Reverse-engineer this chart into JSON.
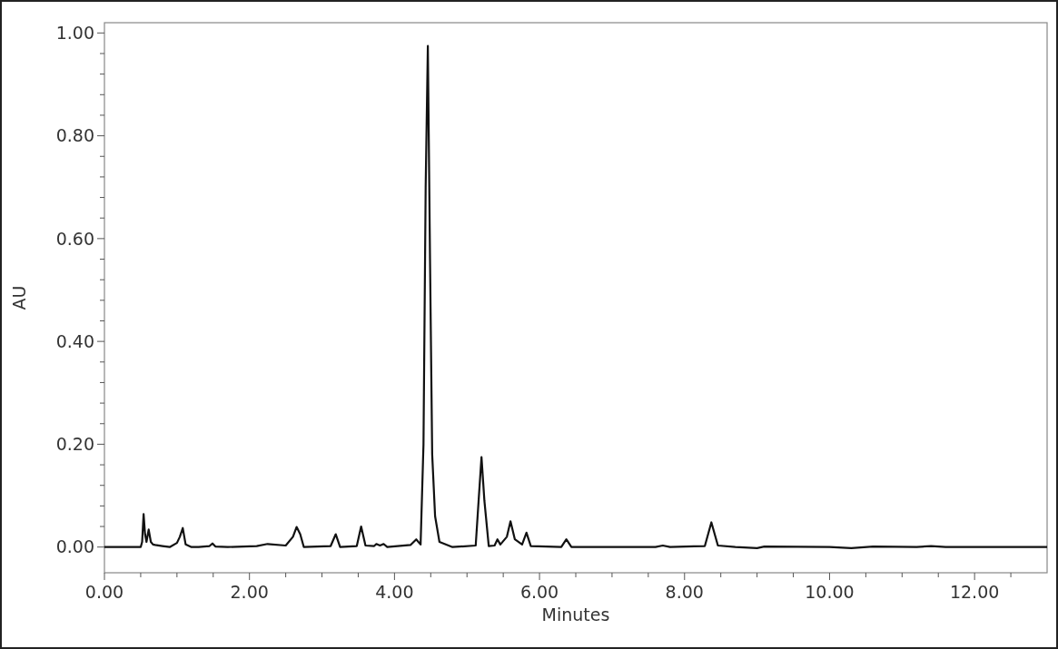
{
  "chart_data": {
    "type": "line",
    "xlabel": "Minutes",
    "ylabel": "AU",
    "xlim": [
      0,
      13
    ],
    "ylim": [
      -0.05,
      1.02
    ],
    "xticks": [
      {
        "value": 0,
        "label": "0.00"
      },
      {
        "value": 0.5,
        "label": null
      },
      {
        "value": 1,
        "label": null
      },
      {
        "value": 1.5,
        "label": null
      },
      {
        "value": 2,
        "label": "2.00"
      },
      {
        "value": 2.5,
        "label": null
      },
      {
        "value": 3,
        "label": null
      },
      {
        "value": 3.5,
        "label": null
      },
      {
        "value": 4,
        "label": "4.00"
      },
      {
        "value": 4.5,
        "label": null
      },
      {
        "value": 5,
        "label": null
      },
      {
        "value": 5.5,
        "label": null
      },
      {
        "value": 6,
        "label": "6.00"
      },
      {
        "value": 6.5,
        "label": null
      },
      {
        "value": 7,
        "label": null
      },
      {
        "value": 7.5,
        "label": null
      },
      {
        "value": 8,
        "label": "8.00"
      },
      {
        "value": 8.5,
        "label": null
      },
      {
        "value": 9,
        "label": null
      },
      {
        "value": 9.5,
        "label": null
      },
      {
        "value": 10,
        "label": "10.00"
      },
      {
        "value": 10.5,
        "label": null
      },
      {
        "value": 11,
        "label": null
      },
      {
        "value": 11.5,
        "label": null
      },
      {
        "value": 12,
        "label": "12.00"
      },
      {
        "value": 12.5,
        "label": null
      }
    ],
    "yticks": [
      {
        "value": 0,
        "label": "0.00"
      },
      {
        "value": 0.04,
        "label": null
      },
      {
        "value": 0.08,
        "label": null
      },
      {
        "value": 0.12,
        "label": null
      },
      {
        "value": 0.16,
        "label": null
      },
      {
        "value": 0.2,
        "label": "0.20"
      },
      {
        "value": 0.24,
        "label": null
      },
      {
        "value": 0.28,
        "label": null
      },
      {
        "value": 0.32,
        "label": null
      },
      {
        "value": 0.36,
        "label": null
      },
      {
        "value": 0.4,
        "label": "0.40"
      },
      {
        "value": 0.44,
        "label": null
      },
      {
        "value": 0.48,
        "label": null
      },
      {
        "value": 0.52,
        "label": null
      },
      {
        "value": 0.56,
        "label": null
      },
      {
        "value": 0.6,
        "label": "0.60"
      },
      {
        "value": 0.64,
        "label": null
      },
      {
        "value": 0.68,
        "label": null
      },
      {
        "value": 0.72,
        "label": null
      },
      {
        "value": 0.76,
        "label": null
      },
      {
        "value": 0.8,
        "label": "0.80"
      },
      {
        "value": 0.84,
        "label": null
      },
      {
        "value": 0.88,
        "label": null
      },
      {
        "value": 0.92,
        "label": null
      },
      {
        "value": 0.96,
        "label": null
      },
      {
        "value": 1,
        "label": "1.00"
      }
    ],
    "grid": false,
    "marker": "none",
    "line_style": "solid",
    "series": [
      {
        "color": "#111111",
        "x": [
          0,
          0.5,
          0.52,
          0.54,
          0.56,
          0.58,
          0.61,
          0.64,
          0.67,
          0.7,
          0.8,
          0.9,
          1.0,
          1.04,
          1.08,
          1.12,
          1.2,
          1.3,
          1.45,
          1.49,
          1.53,
          1.7,
          2.1,
          2.25,
          2.5,
          2.6,
          2.65,
          2.7,
          2.75,
          3.12,
          3.19,
          3.25,
          3.48,
          3.54,
          3.6,
          3.72,
          3.75,
          3.8,
          3.85,
          3.9,
          4.22,
          4.3,
          4.36,
          4.4,
          4.43,
          4.46,
          4.49,
          4.52,
          4.56,
          4.62,
          4.8,
          5.12,
          5.16,
          5.2,
          5.24,
          5.3,
          5.38,
          5.42,
          5.46,
          5.55,
          5.6,
          5.66,
          5.76,
          5.82,
          5.88,
          6.3,
          6.37,
          6.44,
          7.6,
          7.7,
          7.8,
          8.28,
          8.37,
          8.46,
          8.7,
          9.0,
          9.1,
          10.0,
          10.3,
          10.6,
          11.2,
          11.4,
          11.6,
          13
        ],
        "values": [
          0,
          0,
          0.01,
          0.064,
          0.025,
          0.01,
          0.034,
          0.01,
          0.005,
          0.004,
          0.002,
          0,
          0.008,
          0.02,
          0.037,
          0.005,
          0,
          0,
          0.002,
          0.007,
          0.001,
          0,
          0.002,
          0.006,
          0.003,
          0.02,
          0.039,
          0.025,
          0,
          0.002,
          0.025,
          0,
          0.002,
          0.04,
          0.003,
          0.002,
          0.006,
          0.003,
          0.006,
          0,
          0.004,
          0.015,
          0.005,
          0.2,
          0.7,
          0.975,
          0.56,
          0.18,
          0.06,
          0.01,
          0,
          0.003,
          0.09,
          0.175,
          0.09,
          0.002,
          0.003,
          0.015,
          0.005,
          0.02,
          0.05,
          0.015,
          0.005,
          0.028,
          0.002,
          0,
          0.015,
          0,
          0,
          0.003,
          0,
          0.002,
          0.048,
          0.003,
          0,
          -0.002,
          0.001,
          0,
          -0.002,
          0.001,
          0,
          0.002,
          0,
          0
        ]
      }
    ]
  }
}
